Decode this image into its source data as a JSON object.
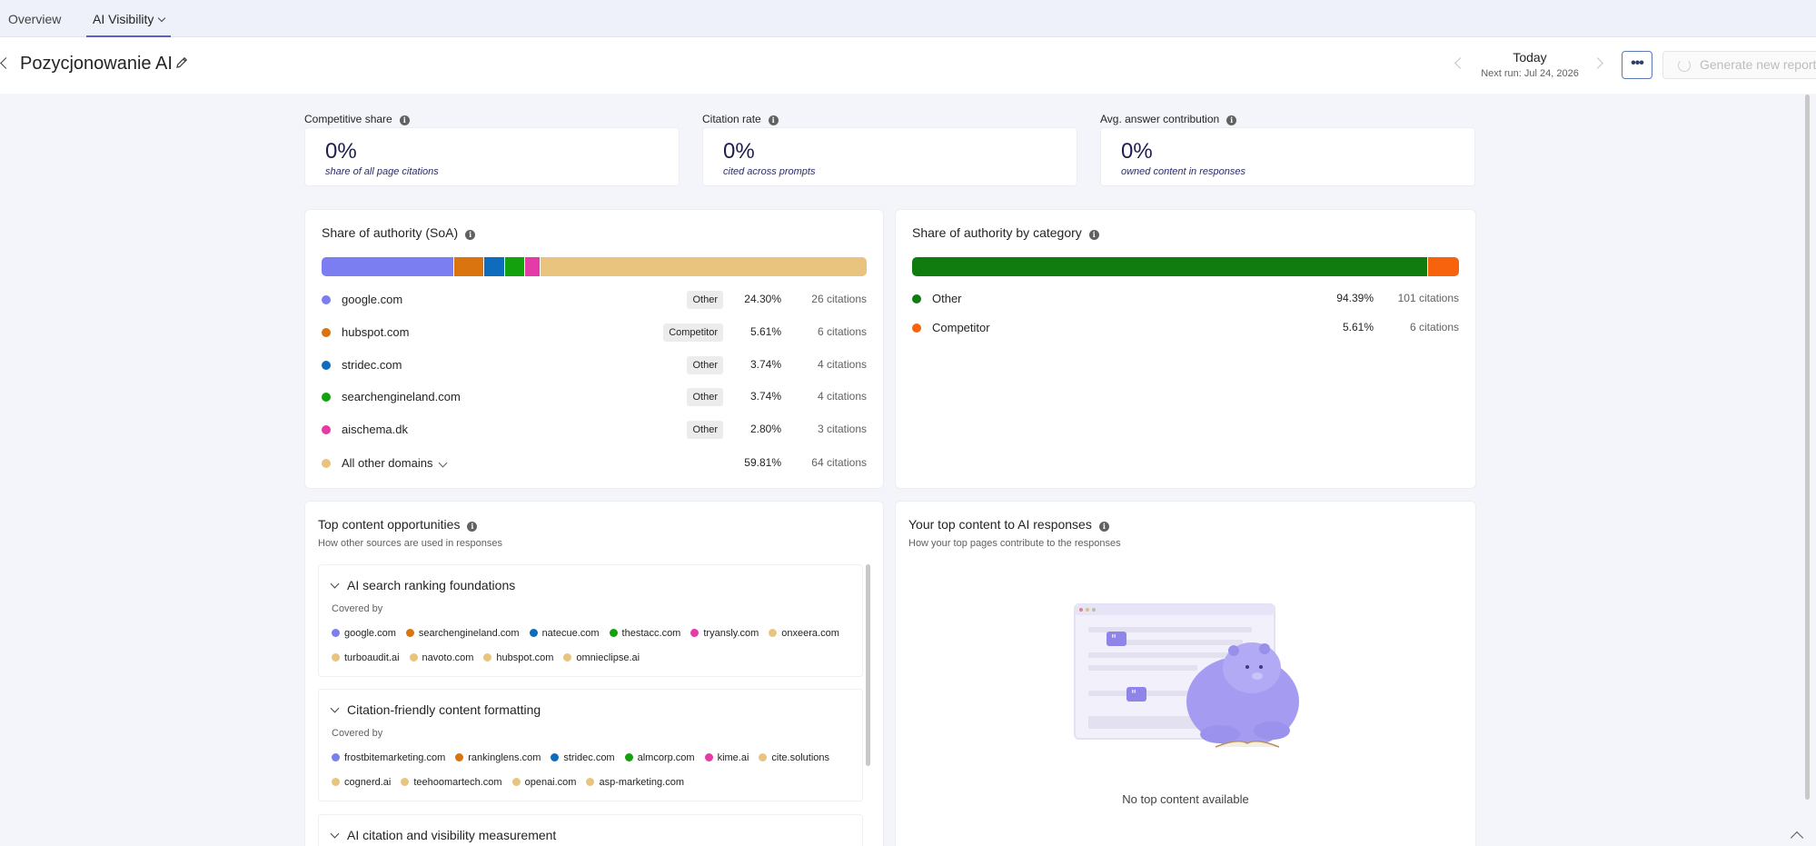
{
  "tabs": [
    {
      "label": "Overview"
    },
    {
      "label": "AI Visibility"
    }
  ],
  "header": {
    "title": "Pozycjonowanie AI",
    "date_label": "Today",
    "next_run": "Next run: Jul 24, 2026",
    "more_label": "•••",
    "generate_label": "Generate new report"
  },
  "kpis": [
    {
      "label": "Competitive share",
      "value": "0%",
      "sub": "share of all page citations"
    },
    {
      "label": "Citation rate",
      "value": "0%",
      "sub": "cited across prompts"
    },
    {
      "label": "Avg. answer contribution",
      "value": "0%",
      "sub": "owned content in responses"
    }
  ],
  "soa": {
    "title": "Share of authority (SoA)",
    "rows": [
      {
        "domain": "google.com",
        "tag": "Other",
        "pct": "24.30%",
        "citations": "26 citations",
        "color": "#7b7ef0",
        "share": 24.3
      },
      {
        "domain": "hubspot.com",
        "tag": "Competitor",
        "pct": "5.61%",
        "citations": "6 citations",
        "color": "#d9740f",
        "share": 5.61
      },
      {
        "domain": "stridec.com",
        "tag": "Other",
        "pct": "3.74%",
        "citations": "4 citations",
        "color": "#0f6cbd",
        "share": 3.74
      },
      {
        "domain": "searchengineland.com",
        "tag": "Other",
        "pct": "3.74%",
        "citations": "4 citations",
        "color": "#13a10e",
        "share": 3.74
      },
      {
        "domain": "aischema.dk",
        "tag": "Other",
        "pct": "2.80%",
        "citations": "3 citations",
        "color": "#e43ba6",
        "share": 2.8
      },
      {
        "domain": "All other domains",
        "tag": "",
        "pct": "59.81%",
        "citations": "64 citations",
        "color": "#e8c47f",
        "share": 59.81
      }
    ]
  },
  "category": {
    "title": "Share of authority by category",
    "rows": [
      {
        "name": "Other",
        "pct": "94.39%",
        "citations": "101 citations",
        "color": "#107c10",
        "share": 94.39
      },
      {
        "name": "Competitor",
        "pct": "5.61%",
        "citations": "6 citations",
        "color": "#f7630c",
        "share": 5.61
      }
    ]
  },
  "opportunities": {
    "title": "Top content opportunities",
    "subtitle": "How other sources are used in responses",
    "covered_label": "Covered by",
    "items": [
      {
        "title": "AI search ranking foundations",
        "sources": [
          {
            "name": "google.com",
            "color": "#7b7ef0"
          },
          {
            "name": "searchengineland.com",
            "color": "#d9740f"
          },
          {
            "name": "natecue.com",
            "color": "#0f6cbd"
          },
          {
            "name": "thestacc.com",
            "color": "#13a10e"
          },
          {
            "name": "tryansly.com",
            "color": "#e43ba6"
          },
          {
            "name": "onxeera.com",
            "color": "#e8c47f"
          },
          {
            "name": "turboaudit.ai",
            "color": "#e8c47f"
          },
          {
            "name": "navoto.com",
            "color": "#e8c47f"
          },
          {
            "name": "hubspot.com",
            "color": "#e8c47f"
          },
          {
            "name": "omnieclipse.ai",
            "color": "#e8c47f"
          }
        ]
      },
      {
        "title": "Citation-friendly content formatting",
        "sources": [
          {
            "name": "frostbitemarketing.com",
            "color": "#7b7ef0"
          },
          {
            "name": "rankinglens.com",
            "color": "#d9740f"
          },
          {
            "name": "stridec.com",
            "color": "#0f6cbd"
          },
          {
            "name": "almcorp.com",
            "color": "#13a10e"
          },
          {
            "name": "kime.ai",
            "color": "#e43ba6"
          },
          {
            "name": "cite.solutions",
            "color": "#e8c47f"
          },
          {
            "name": "cognerd.ai",
            "color": "#e8c47f"
          },
          {
            "name": "teehoomartech.com",
            "color": "#e8c47f"
          },
          {
            "name": "openai.com",
            "color": "#e8c47f"
          },
          {
            "name": "asp-marketing.com",
            "color": "#e8c47f"
          }
        ]
      },
      {
        "title": "AI citation and visibility measurement",
        "sources": []
      }
    ]
  },
  "top_content": {
    "title": "Your top content to AI responses",
    "subtitle": "How your top pages contribute to the responses",
    "empty_text": "No top content available"
  }
}
